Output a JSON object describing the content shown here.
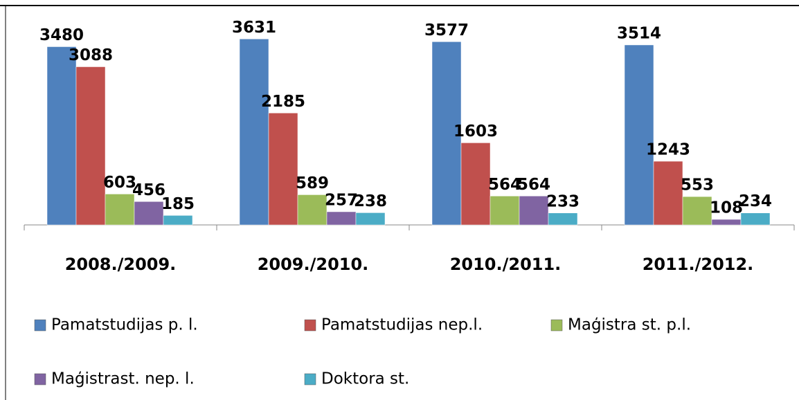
{
  "chart_data": {
    "type": "bar",
    "categories": [
      "2008./2009.",
      "2009./2010.",
      "2010./2011.",
      "2011./2012."
    ],
    "series": [
      {
        "name": "Pamatstudijas p. l.",
        "color": "#4f81bd",
        "values": [
          3480,
          3631,
          3577,
          3514
        ]
      },
      {
        "name": "Pamatstudijas nep.l.",
        "color": "#c0504d",
        "values": [
          3088,
          2185,
          1603,
          1243
        ]
      },
      {
        "name": "Maģistra st. p.l.",
        "color": "#9bbb59",
        "values": [
          603,
          589,
          564,
          553
        ]
      },
      {
        "name": "Maģistrast. nep. l.",
        "color": "#8064a2",
        "values": [
          456,
          257,
          564,
          108
        ]
      },
      {
        "name": "Doktora st.",
        "color": "#4bacc6",
        "values": [
          185,
          238,
          233,
          234
        ]
      }
    ],
    "ylim": [
      0,
      4000
    ]
  }
}
